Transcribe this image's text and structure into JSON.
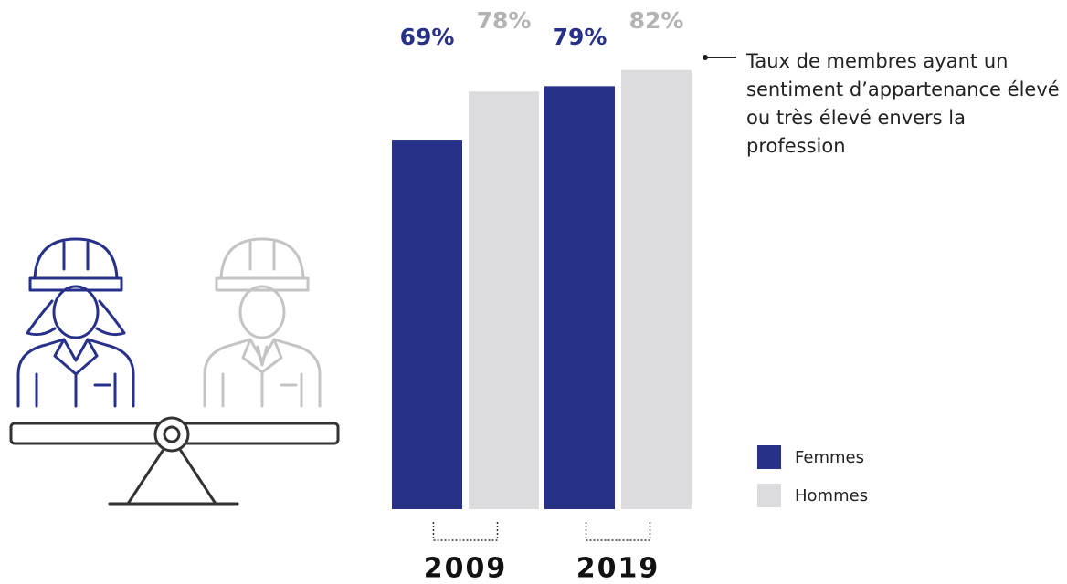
{
  "chart_data": {
    "type": "bar",
    "categories": [
      "2009",
      "2019"
    ],
    "series": [
      {
        "name": "Femmes",
        "color": "#283189",
        "label_color": "#283189",
        "values": [
          69,
          79
        ],
        "value_labels": [
          "69%",
          "79%"
        ]
      },
      {
        "name": "Hommes",
        "color": "#dcdcde",
        "label_color": "#b3b3b5",
        "values": [
          78,
          82
        ],
        "value_labels": [
          "78%",
          "82%"
        ]
      }
    ],
    "ylim": [
      0,
      84
    ],
    "annotation": "Taux de membres ayant un sentiment d’appartenance élevé ou très élevé envers la profession"
  }
}
